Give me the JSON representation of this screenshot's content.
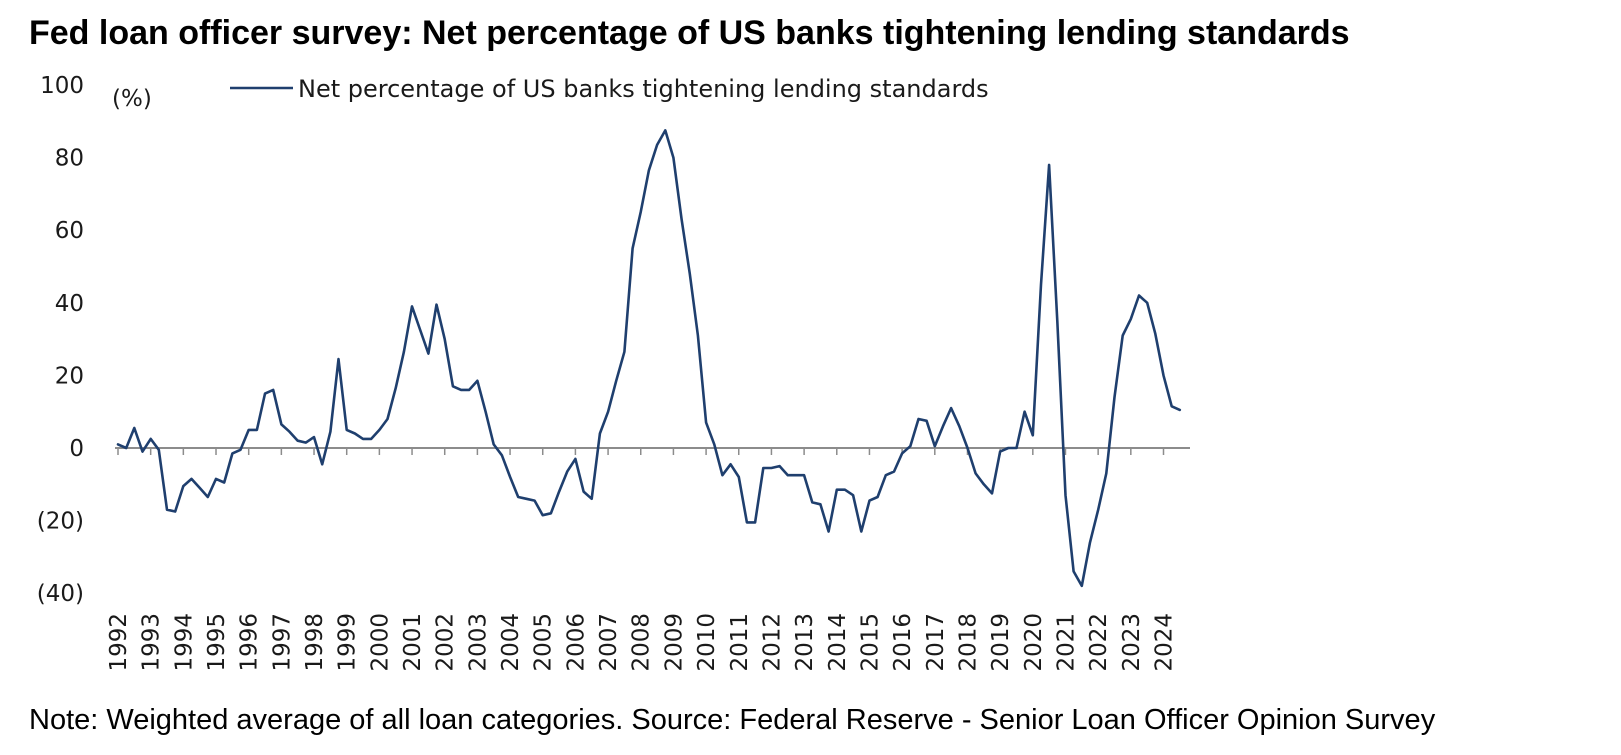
{
  "title": "Fed loan officer survey: Net percentage of US banks tightening lending standards",
  "note": "Note: Weighted average of all loan categories. Source: Federal Reserve - Senior Loan Officer Opinion Survey",
  "chart_data": {
    "type": "line",
    "title": "Fed loan officer survey: Net percentage of US banks tightening lending standards",
    "ylabel": "(%)",
    "xlabel": "",
    "ylim": [
      -40,
      100
    ],
    "y_ticks": [
      100,
      80,
      60,
      40,
      20,
      0,
      -20,
      -40
    ],
    "y_tick_labels": [
      "100",
      "80",
      "60",
      "40",
      "20",
      "0",
      "(20)",
      "(40)"
    ],
    "x_range": [
      1992,
      2024.75
    ],
    "x_ticks": [
      "1992",
      "1993",
      "1994",
      "1995",
      "1996",
      "1997",
      "1998",
      "1999",
      "2000",
      "2001",
      "2002",
      "2003",
      "2004",
      "2005",
      "2006",
      "2007",
      "2008",
      "2009",
      "2010",
      "2011",
      "2012",
      "2013",
      "2014",
      "2015",
      "2016",
      "2017",
      "2018",
      "2019",
      "2020",
      "2021",
      "2022",
      "2023",
      "2024"
    ],
    "legend_position": "top",
    "grid": false,
    "colors": {
      "series": "#1f3f6e",
      "zero_line": "#8c8c8c"
    },
    "series": [
      {
        "name": "Net percentage of US banks tightening lending standards",
        "x": [
          1992.0,
          1992.25,
          1992.5,
          1992.75,
          1993.0,
          1993.25,
          1993.5,
          1993.75,
          1994.0,
          1994.25,
          1994.5,
          1994.75,
          1995.0,
          1995.25,
          1995.5,
          1995.75,
          1996.0,
          1996.25,
          1996.5,
          1996.75,
          1997.0,
          1997.25,
          1997.5,
          1997.75,
          1998.0,
          1998.25,
          1998.5,
          1998.75,
          1999.0,
          1999.25,
          1999.5,
          1999.75,
          2000.0,
          2000.25,
          2000.5,
          2000.75,
          2001.0,
          2001.25,
          2001.5,
          2001.75,
          2002.0,
          2002.25,
          2002.5,
          2002.75,
          2003.0,
          2003.25,
          2003.5,
          2003.75,
          2004.0,
          2004.25,
          2004.5,
          2004.75,
          2005.0,
          2005.25,
          2005.5,
          2005.75,
          2006.0,
          2006.25,
          2006.5,
          2006.75,
          2007.0,
          2007.25,
          2007.5,
          2007.75,
          2008.0,
          2008.25,
          2008.5,
          2008.75,
          2009.0,
          2009.25,
          2009.5,
          2009.75,
          2010.0,
          2010.25,
          2010.5,
          2010.75,
          2011.0,
          2011.25,
          2011.5,
          2011.75,
          2012.0,
          2012.25,
          2012.5,
          2012.75,
          2013.0,
          2013.25,
          2013.5,
          2013.75,
          2014.0,
          2014.25,
          2014.5,
          2014.75,
          2015.0,
          2015.25,
          2015.5,
          2015.75,
          2016.0,
          2016.25,
          2016.5,
          2016.75,
          2017.0,
          2017.25,
          2017.5,
          2017.75,
          2018.0,
          2018.25,
          2018.5,
          2018.75,
          2019.0,
          2019.25,
          2019.5,
          2019.75,
          2020.0,
          2020.25,
          2020.5,
          2020.75,
          2021.0,
          2021.25,
          2021.5,
          2021.75,
          2022.0,
          2022.25,
          2022.5,
          2022.75,
          2023.0,
          2023.25,
          2023.5,
          2023.75,
          2024.0,
          2024.25,
          2024.5
        ],
        "values": [
          1,
          0,
          5.5,
          -1,
          2.5,
          -0.5,
          -17,
          -17.5,
          -10.5,
          -8.5,
          -11,
          -13.5,
          -8.5,
          -9.5,
          -1.5,
          -0.5,
          5,
          5,
          15,
          16,
          6.5,
          4.5,
          2,
          1.5,
          3,
          -4.5,
          4.5,
          24.5,
          5,
          4,
          2.5,
          2.5,
          5,
          8,
          16.5,
          26.5,
          39,
          32.5,
          26,
          39.5,
          30,
          17,
          16,
          16,
          18.5,
          10,
          1,
          -2,
          -8,
          -13.5,
          -14,
          -14.5,
          -18.5,
          -18,
          -12,
          -6.5,
          -3,
          -12,
          -14,
          4,
          10,
          18.5,
          26.5,
          55,
          65,
          76.5,
          83.5,
          87.5,
          80,
          63,
          48,
          31,
          7,
          1,
          -7.5,
          -4.5,
          -8,
          -20.5,
          -20.5,
          -5.5,
          -5.5,
          -5,
          -7.5,
          -7.5,
          -7.5,
          -15,
          -15.5,
          -23,
          -11.5,
          -11.5,
          -13,
          -23,
          -14.5,
          -13.5,
          -7.5,
          -6.5,
          -1.5,
          0.5,
          8,
          7.5,
          0.5,
          6,
          11,
          6,
          0,
          -7,
          -10,
          -12.5,
          -1,
          0,
          0,
          10,
          3.5,
          45,
          78,
          35,
          -13,
          -34,
          -38,
          -26,
          -17,
          -7,
          14,
          31,
          35.5,
          42,
          40,
          31.5,
          20,
          11.5,
          10.5
        ]
      }
    ]
  }
}
